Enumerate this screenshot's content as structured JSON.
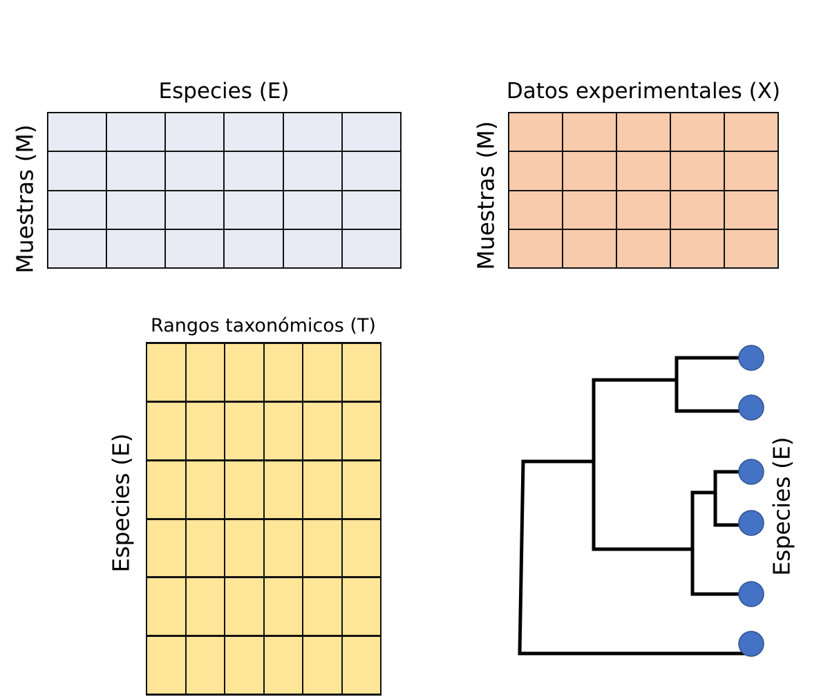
{
  "matrices": {
    "species": {
      "title": "Especies (E)",
      "row_label": "Muestras (M)",
      "rows": 4,
      "cols": 6,
      "fill_color": "#E8EBF3"
    },
    "experimental": {
      "title": "Datos experimentales (X)",
      "row_label": "Muestras (M)",
      "rows": 4,
      "cols": 5,
      "fill_color": "#F7CBAC"
    },
    "taxonomic": {
      "title": "Rangos taxonómicos (T)",
      "row_label": "Especies (E)",
      "rows": 6,
      "cols": 6,
      "fill_color": "#FFE598"
    }
  },
  "tree": {
    "label": "Especies (E)",
    "leaf_count": 6,
    "leaf_color": "#4472C4",
    "leaf_border_color": "#2F528F",
    "branch_color": "#000000"
  }
}
